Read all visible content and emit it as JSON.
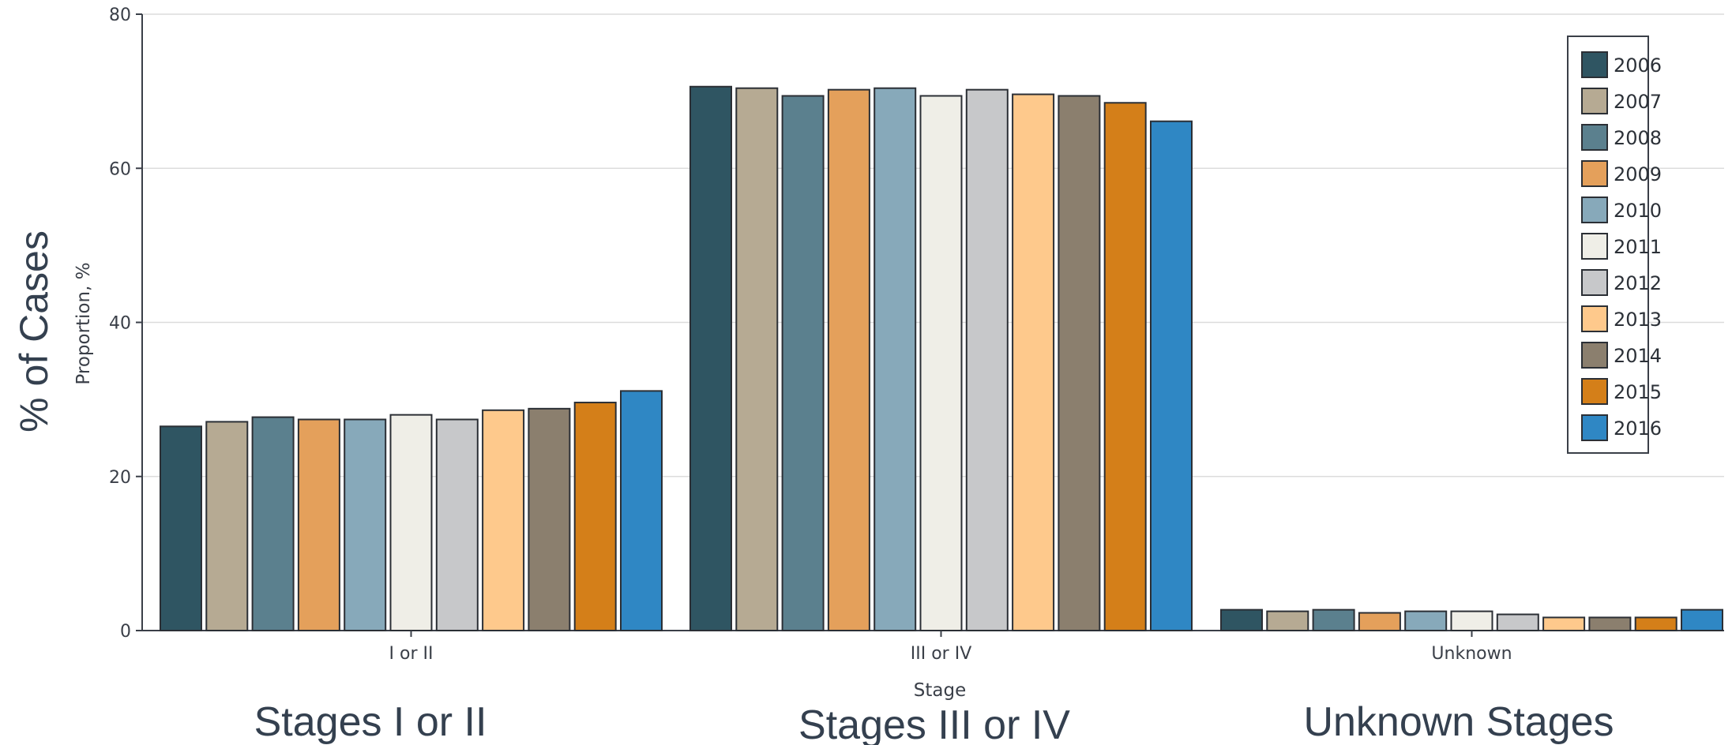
{
  "chart_data": {
    "type": "bar",
    "categories": [
      "I or II",
      "III or IV",
      "Unknown"
    ],
    "group_titles": [
      "Stages I or II",
      "Stages III or IV",
      "Unknown Stages"
    ],
    "xlabel": "Stage",
    "ylabel": "Proportion, %",
    "ylabel_outer": "% of Cases",
    "ylim": [
      0,
      80
    ],
    "yticks": [
      "0",
      "20",
      "40",
      "60",
      "80"
    ],
    "grid": true,
    "legend_position": "top-right",
    "series": [
      {
        "name": "2006",
        "color": "#2f5562",
        "values": [
          26.5,
          70.6,
          2.7
        ]
      },
      {
        "name": "2007",
        "color": "#b6aa93",
        "values": [
          27.1,
          70.4,
          2.5
        ]
      },
      {
        "name": "2008",
        "color": "#5b808e",
        "values": [
          27.7,
          69.4,
          2.7
        ]
      },
      {
        "name": "2009",
        "color": "#e4a05b",
        "values": [
          27.4,
          70.2,
          2.3
        ]
      },
      {
        "name": "2010",
        "color": "#87a9ba",
        "values": [
          27.4,
          70.4,
          2.5
        ]
      },
      {
        "name": "2011",
        "color": "#efeee7",
        "values": [
          28.0,
          69.4,
          2.5
        ]
      },
      {
        "name": "2012",
        "color": "#c7c8ca",
        "values": [
          27.4,
          70.2,
          2.1
        ]
      },
      {
        "name": "2013",
        "color": "#fec98c",
        "values": [
          28.6,
          69.6,
          1.7
        ]
      },
      {
        "name": "2014",
        "color": "#8b7f6e",
        "values": [
          28.8,
          69.4,
          1.7
        ]
      },
      {
        "name": "2015",
        "color": "#d47f19",
        "values": [
          29.6,
          68.5,
          1.7
        ]
      },
      {
        "name": "2016",
        "color": "#2f87c4",
        "values": [
          31.1,
          66.1,
          2.7
        ]
      }
    ]
  }
}
